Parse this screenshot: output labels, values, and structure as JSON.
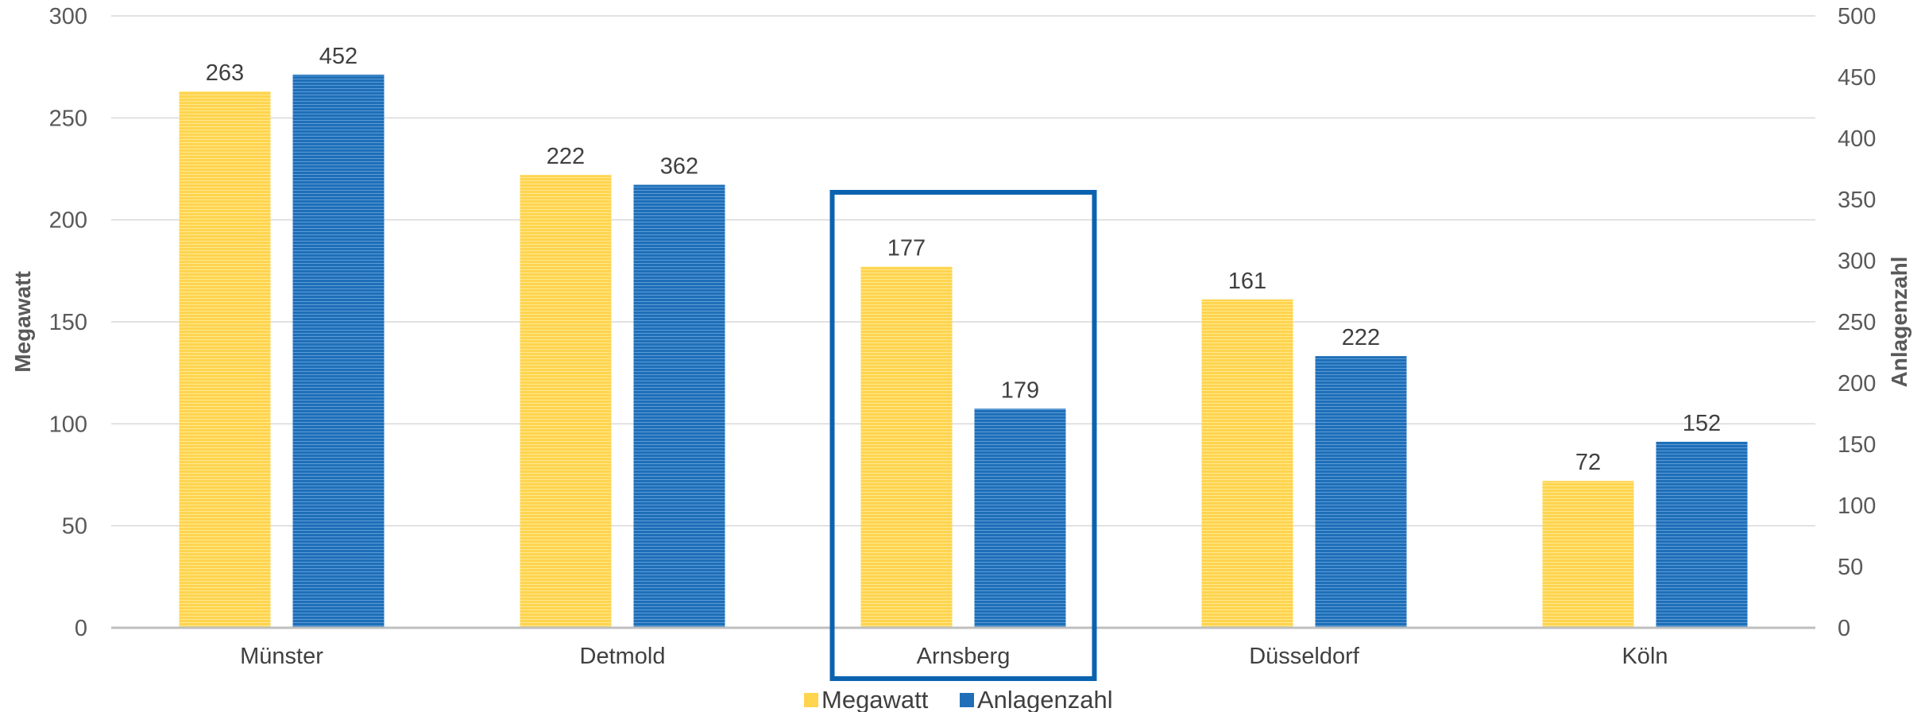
{
  "chart_data": {
    "type": "bar",
    "categories": [
      "Münster",
      "Detmold",
      "Arnsberg",
      "Düsseldorf",
      "Köln"
    ],
    "series": [
      {
        "name": "Megawatt",
        "axis": "left",
        "color": "#FFD44F",
        "values": [
          263,
          222,
          177,
          161,
          72
        ]
      },
      {
        "name": "Anlagenzahl",
        "axis": "right",
        "color": "#1F6FB8",
        "values": [
          452,
          362,
          179,
          222,
          152
        ]
      }
    ],
    "ylabel": "Megawatt",
    "y2label": "Anlagenzahl",
    "ylim": [
      0,
      300
    ],
    "y2lim": [
      0,
      500
    ],
    "yticks": [
      0,
      50,
      100,
      150,
      200,
      250,
      300
    ],
    "y2ticks": [
      0,
      50,
      100,
      150,
      200,
      250,
      300,
      350,
      400,
      450,
      500
    ],
    "grid": true,
    "legend_position": "bottom",
    "highlighted_category": "Arnsberg",
    "highlight_color": "#0B63B0"
  }
}
